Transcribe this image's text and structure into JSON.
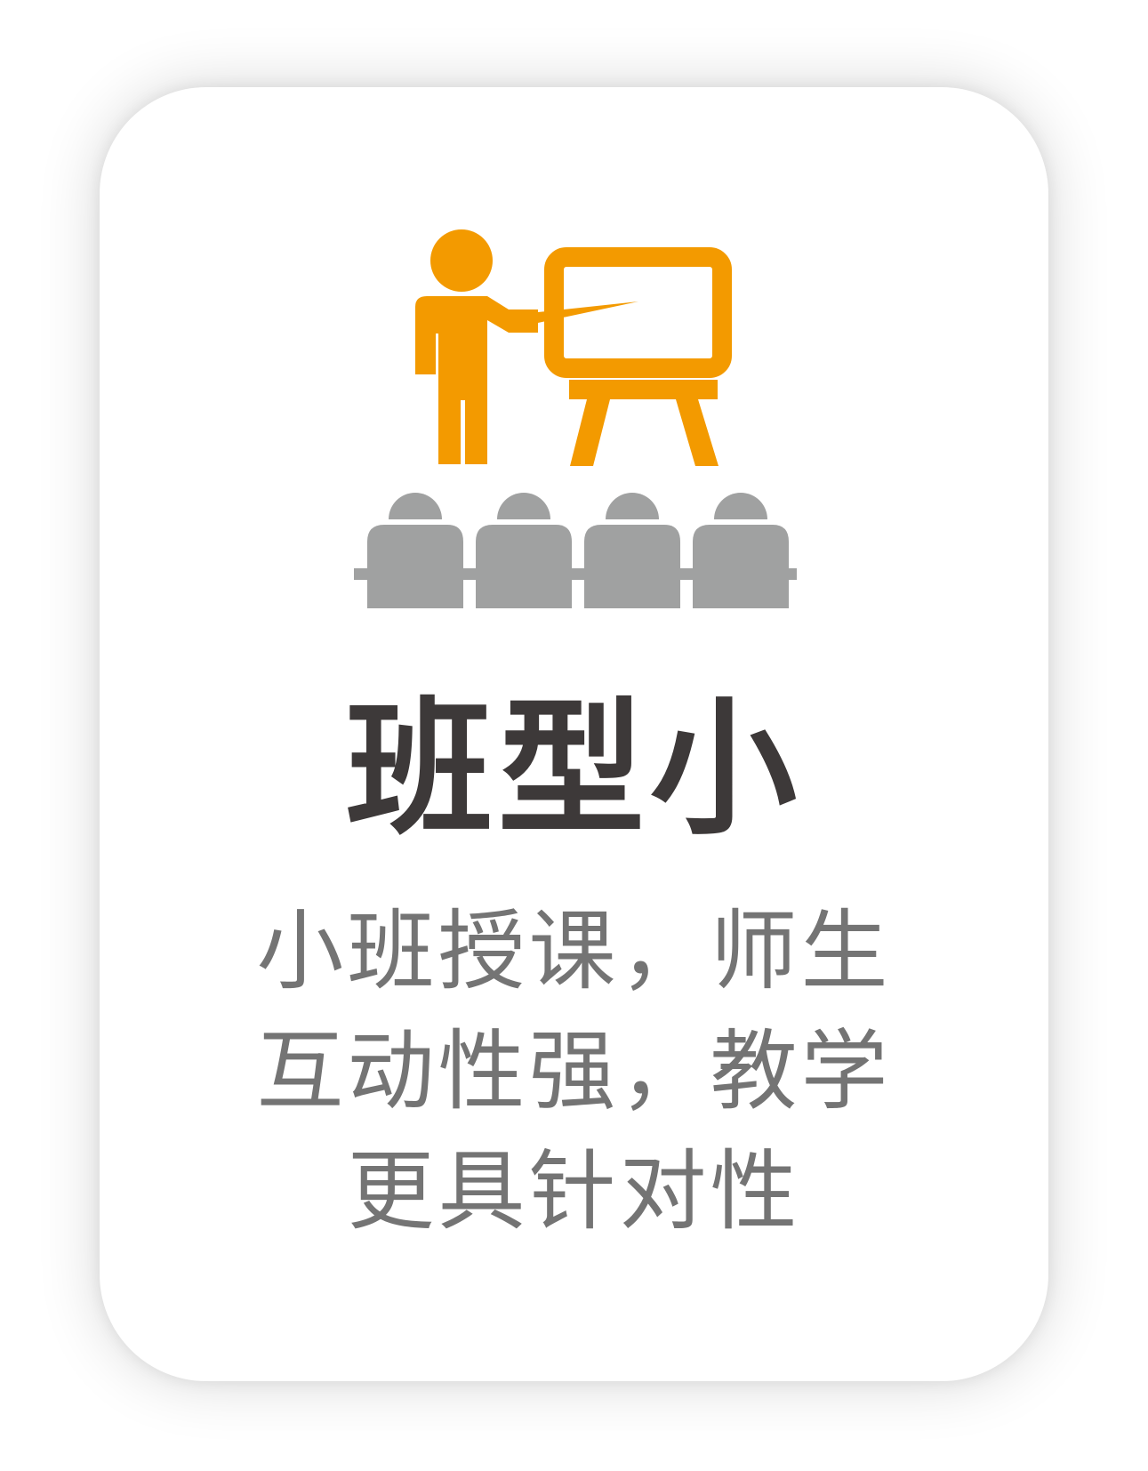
{
  "card": {
    "title": "班型小",
    "description_lines": [
      "小班授课，师生",
      "互动性强，教学",
      "更具针对性"
    ]
  },
  "icons": {
    "teacher": "teacher-presenting-icon",
    "students": "students-seated-icon"
  },
  "colors": {
    "accent": "#F39A00",
    "students": "#A0A1A1",
    "title": "#3D3939",
    "text": "#747474"
  }
}
